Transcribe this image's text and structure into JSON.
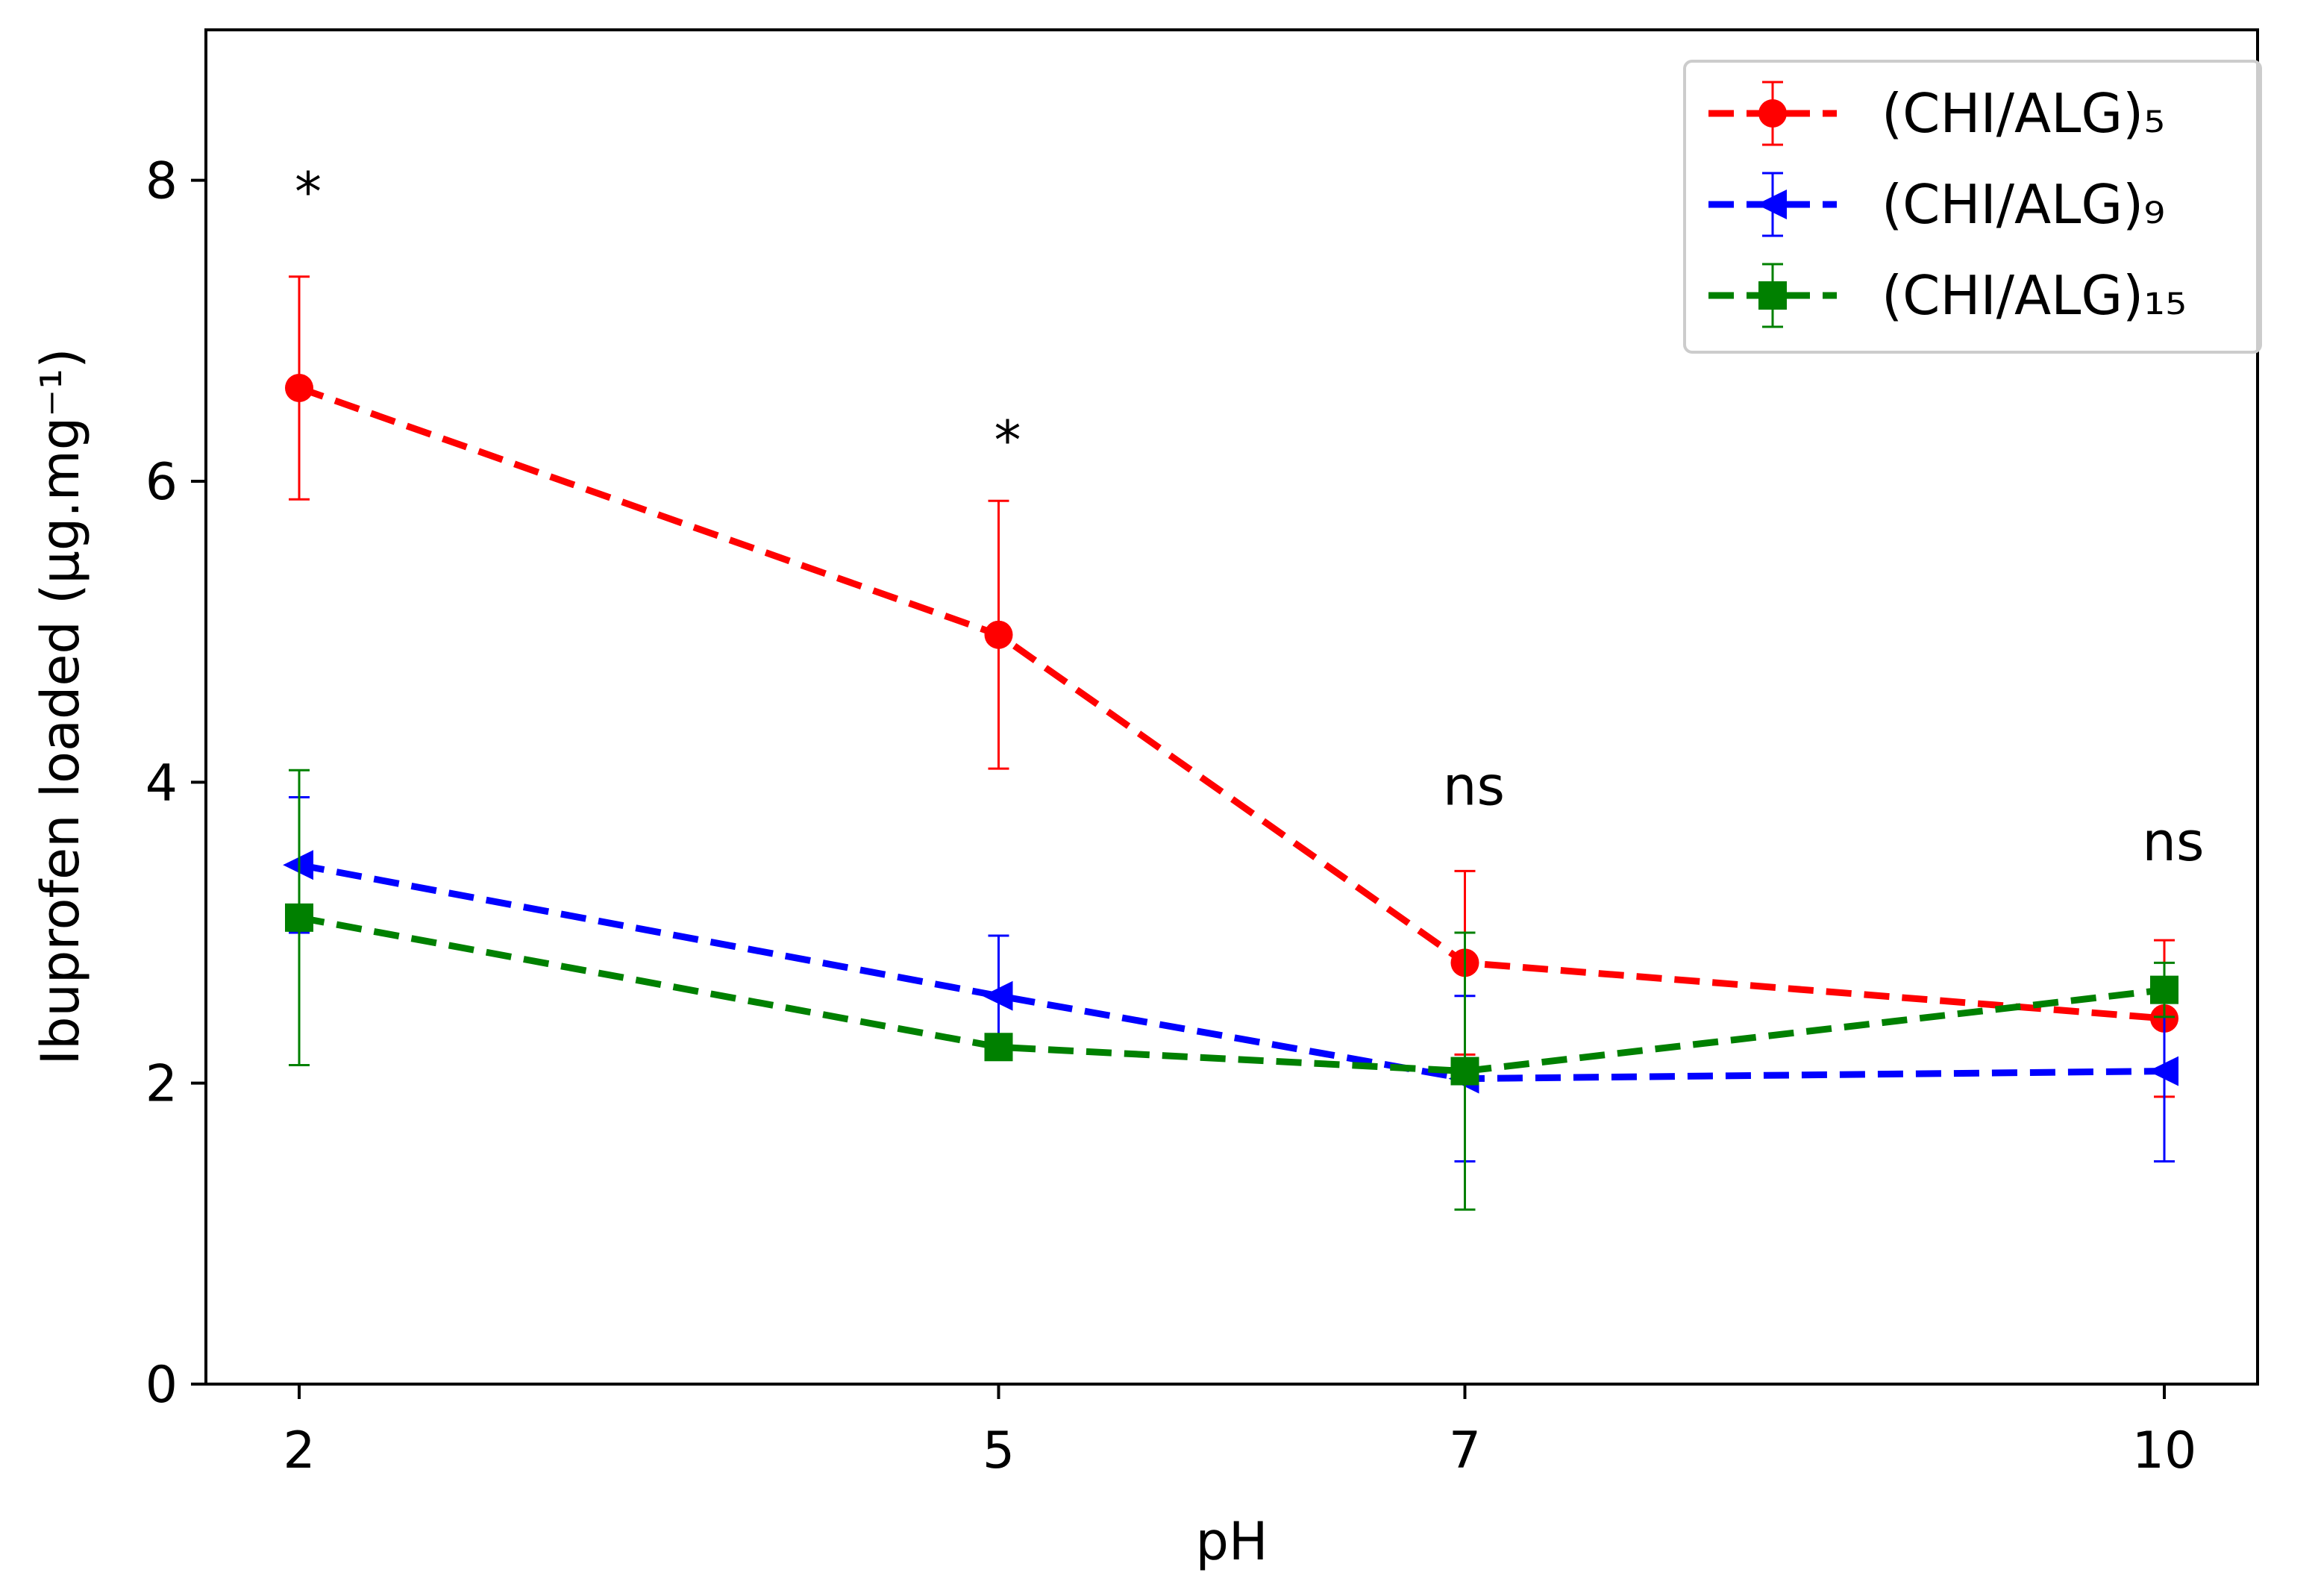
{
  "chart_data": {
    "type": "line",
    "title": "",
    "xlabel": "pH",
    "ylabel": "Ibuprofen loaded (μg.mg⁻¹)",
    "x": [
      2,
      5,
      7,
      10
    ],
    "xlim": [
      1.6,
      10.4
    ],
    "ylim": [
      0,
      9
    ],
    "xticks": [
      2,
      5,
      7,
      10
    ],
    "yticks": [
      0,
      2,
      4,
      6,
      8
    ],
    "grid": false,
    "legend_position": "top-right",
    "series": [
      {
        "name": "(CHI/ALG)₅",
        "color": "#ff0000",
        "marker": "circle",
        "line_style": "dashed",
        "values": [
          6.62,
          4.98,
          2.8,
          2.43
        ],
        "errors": [
          0.74,
          0.89,
          0.61,
          0.52
        ]
      },
      {
        "name": "(CHI/ALG)₉",
        "color": "#0000ff",
        "marker": "triangle-left",
        "line_style": "dashed",
        "values": [
          3.45,
          2.58,
          2.03,
          2.08
        ],
        "errors": [
          0.45,
          0.4,
          0.55,
          0.6
        ]
      },
      {
        "name": "(CHI/ALG)₁₅",
        "color": "#008000",
        "marker": "square",
        "line_style": "dashed",
        "values": [
          3.1,
          2.24,
          2.08,
          2.62
        ],
        "errors": [
          0.98,
          0.0,
          0.92,
          0.18
        ]
      }
    ],
    "annotations": [
      {
        "x": 2,
        "y": 7.8,
        "text": "*"
      },
      {
        "x": 5,
        "y": 6.15,
        "text": "*"
      },
      {
        "x": 7,
        "y": 3.85,
        "text": "ns"
      },
      {
        "x": 10,
        "y": 3.48,
        "text": "ns"
      }
    ]
  }
}
